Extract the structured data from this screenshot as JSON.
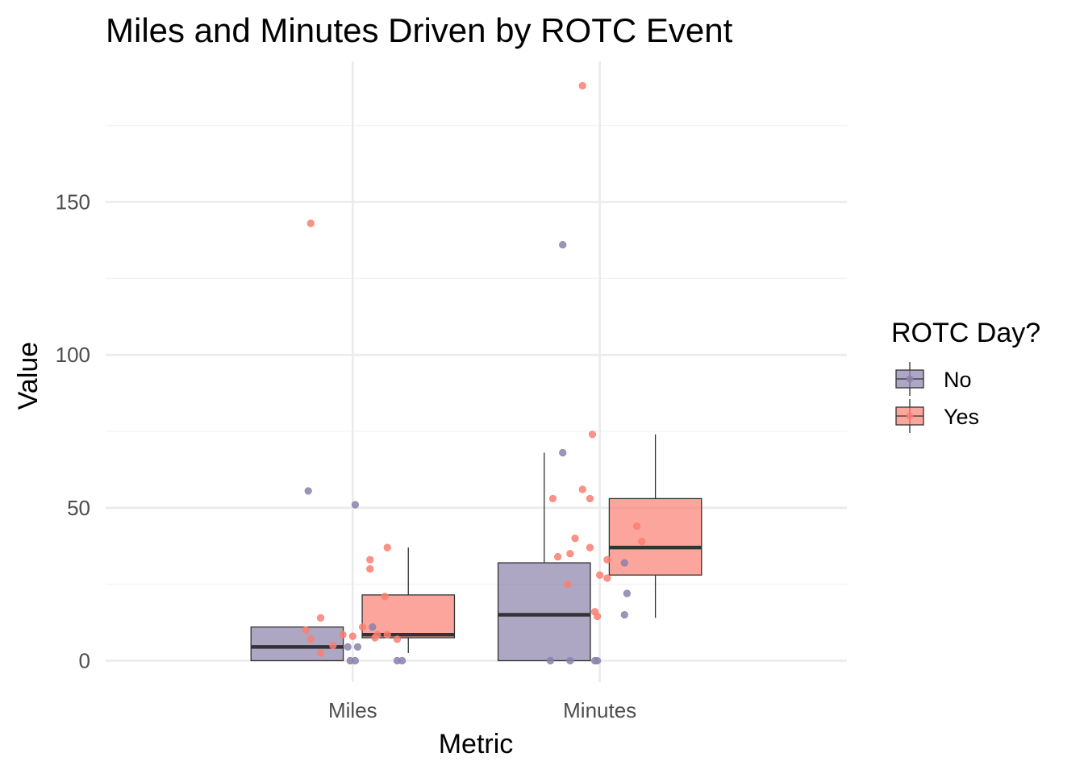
{
  "chart_data": {
    "type": "box",
    "title": "Miles and Minutes Driven by ROTC Event",
    "xlabel": "Metric",
    "ylabel": "Value",
    "categories": [
      "Miles",
      "Minutes"
    ],
    "ylim": [
      -7,
      196
    ],
    "y_ticks": [
      0,
      50,
      100,
      150
    ],
    "y_tick_labels": [
      "0",
      "50",
      "100",
      "150"
    ],
    "grid": true,
    "legend": {
      "title": "ROTC Day?",
      "position": "right",
      "entries": [
        {
          "name": "No",
          "color": "#8c81ab"
        },
        {
          "name": "Yes",
          "color": "#fa7f72"
        }
      ]
    },
    "series": [
      {
        "name": "No",
        "color": "#8c81ab",
        "boxes": [
          {
            "category": "Miles",
            "min": 0,
            "q1": 0,
            "median": 4.5,
            "q3": 11,
            "max": 11
          },
          {
            "category": "Minutes",
            "min": 0,
            "q1": 0,
            "median": 15,
            "q3": 32,
            "max": 68
          }
        ],
        "points": [
          {
            "category": "Miles",
            "jitter": -0.18,
            "y": 55.5
          },
          {
            "category": "Miles",
            "jitter": 0.01,
            "y": 51
          },
          {
            "category": "Miles",
            "jitter": 0.08,
            "y": 11
          },
          {
            "category": "Miles",
            "jitter": -0.02,
            "y": 4.5
          },
          {
            "category": "Miles",
            "jitter": 0.02,
            "y": 4.5
          },
          {
            "category": "Miles",
            "jitter": -0.01,
            "y": 0
          },
          {
            "category": "Miles",
            "jitter": 0.01,
            "y": 0
          },
          {
            "category": "Miles",
            "jitter": 0.18,
            "y": 0
          },
          {
            "category": "Miles",
            "jitter": 0.2,
            "y": 0
          },
          {
            "category": "Minutes",
            "jitter": -0.15,
            "y": 136
          },
          {
            "category": "Minutes",
            "jitter": -0.15,
            "y": 68
          },
          {
            "category": "Minutes",
            "jitter": 0.1,
            "y": 32
          },
          {
            "category": "Minutes",
            "jitter": 0.11,
            "y": 22
          },
          {
            "category": "Minutes",
            "jitter": 0.1,
            "y": 15
          },
          {
            "category": "Minutes",
            "jitter": -0.2,
            "y": 0
          },
          {
            "category": "Minutes",
            "jitter": -0.12,
            "y": 0
          },
          {
            "category": "Minutes",
            "jitter": -0.02,
            "y": 0
          },
          {
            "category": "Minutes",
            "jitter": -0.01,
            "y": 0
          }
        ]
      },
      {
        "name": "Yes",
        "color": "#fa7f72",
        "boxes": [
          {
            "category": "Miles",
            "min": 2.5,
            "q1": 7.5,
            "median": 8.5,
            "q3": 21.5,
            "max": 37
          },
          {
            "category": "Minutes",
            "min": 14,
            "q1": 28,
            "median": 37,
            "q3": 53,
            "max": 74
          }
        ],
        "points": [
          {
            "category": "Miles",
            "jitter": -0.17,
            "y": 143
          },
          {
            "category": "Miles",
            "jitter": 0.14,
            "y": 37
          },
          {
            "category": "Miles",
            "jitter": 0.07,
            "y": 33
          },
          {
            "category": "Miles",
            "jitter": 0.07,
            "y": 30
          },
          {
            "category": "Miles",
            "jitter": 0.13,
            "y": 21
          },
          {
            "category": "Miles",
            "jitter": -0.13,
            "y": 14
          },
          {
            "category": "Miles",
            "jitter": 0.04,
            "y": 11
          },
          {
            "category": "Miles",
            "jitter": -0.19,
            "y": 10
          },
          {
            "category": "Miles",
            "jitter": 0.0,
            "y": 8
          },
          {
            "category": "Miles",
            "jitter": 0.1,
            "y": 8.5
          },
          {
            "category": "Miles",
            "jitter": 0.14,
            "y": 8.5
          },
          {
            "category": "Miles",
            "jitter": -0.04,
            "y": 8.5
          },
          {
            "category": "Miles",
            "jitter": 0.09,
            "y": 7.5
          },
          {
            "category": "Miles",
            "jitter": -0.17,
            "y": 7
          },
          {
            "category": "Miles",
            "jitter": 0.18,
            "y": 7
          },
          {
            "category": "Miles",
            "jitter": -0.08,
            "y": 5
          },
          {
            "category": "Miles",
            "jitter": -0.13,
            "y": 2.5
          },
          {
            "category": "Minutes",
            "jitter": -0.07,
            "y": 188
          },
          {
            "category": "Minutes",
            "jitter": -0.03,
            "y": 74
          },
          {
            "category": "Minutes",
            "jitter": -0.07,
            "y": 56
          },
          {
            "category": "Minutes",
            "jitter": -0.04,
            "y": 53
          },
          {
            "category": "Minutes",
            "jitter": -0.19,
            "y": 53
          },
          {
            "category": "Minutes",
            "jitter": 0.15,
            "y": 44
          },
          {
            "category": "Minutes",
            "jitter": -0.1,
            "y": 40
          },
          {
            "category": "Minutes",
            "jitter": 0.17,
            "y": 39
          },
          {
            "category": "Minutes",
            "jitter": -0.04,
            "y": 37
          },
          {
            "category": "Minutes",
            "jitter": -0.12,
            "y": 35
          },
          {
            "category": "Minutes",
            "jitter": -0.17,
            "y": 34
          },
          {
            "category": "Minutes",
            "jitter": 0.03,
            "y": 33
          },
          {
            "category": "Minutes",
            "jitter": 0.0,
            "y": 28
          },
          {
            "category": "Minutes",
            "jitter": 0.03,
            "y": 27
          },
          {
            "category": "Minutes",
            "jitter": -0.13,
            "y": 25
          },
          {
            "category": "Minutes",
            "jitter": -0.02,
            "y": 16
          },
          {
            "category": "Minutes",
            "jitter": -0.01,
            "y": 14.5
          }
        ]
      }
    ]
  }
}
